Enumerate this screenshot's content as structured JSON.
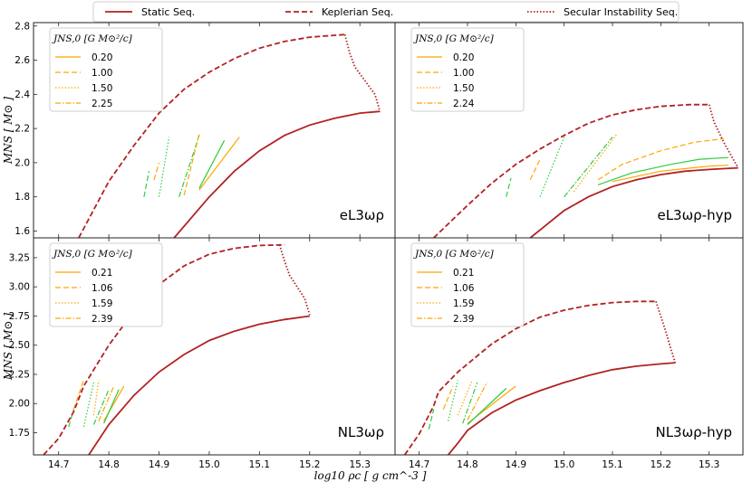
{
  "chart_data": {
    "type": "line",
    "legend_top": [
      {
        "label": "Static Seq.",
        "style": "solid",
        "color": "#b22222"
      },
      {
        "label": "Keplerian Seq.",
        "style": "dashed",
        "color": "#b22222"
      },
      {
        "label": "Secular Instability Seq.",
        "style": "dotted",
        "color": "#b22222"
      }
    ],
    "xlabel": "log10 ρc [ g cm^-3 ]",
    "ylabel": "MNS [ M⊙ ]",
    "xlim": [
      14.65,
      15.37
    ],
    "xticks": [
      "14.7",
      "14.8",
      "14.9",
      "15.0",
      "15.1",
      "15.2",
      "15.3"
    ],
    "panels": [
      {
        "id": "tl",
        "label": "eL3ωρ",
        "ylim": [
          1.56,
          2.82
        ],
        "yticks": [
          "1.6",
          "1.8",
          "2.0",
          "2.2",
          "2.4",
          "2.6",
          "2.8"
        ],
        "legend_title": "JNS,0 [G M⊙²/c]",
        "legend_values": [
          "0.20",
          "1.00",
          "1.50",
          "2.25"
        ],
        "static": [
          [
            14.93,
            1.56
          ],
          [
            15.0,
            1.8
          ],
          [
            15.05,
            1.95
          ],
          [
            15.1,
            2.07
          ],
          [
            15.15,
            2.16
          ],
          [
            15.2,
            2.22
          ],
          [
            15.25,
            2.26
          ],
          [
            15.3,
            2.29
          ],
          [
            15.34,
            2.3
          ]
        ],
        "kepler": [
          [
            14.74,
            1.56
          ],
          [
            14.8,
            1.89
          ],
          [
            14.85,
            2.1
          ],
          [
            14.9,
            2.29
          ],
          [
            14.95,
            2.43
          ],
          [
            15.0,
            2.53
          ],
          [
            15.05,
            2.61
          ],
          [
            15.1,
            2.67
          ],
          [
            15.15,
            2.71
          ],
          [
            15.2,
            2.735
          ],
          [
            15.27,
            2.75
          ]
        ],
        "secular": [
          [
            15.27,
            2.75
          ],
          [
            15.28,
            2.64
          ],
          [
            15.29,
            2.56
          ],
          [
            15.33,
            2.4
          ],
          [
            15.34,
            2.3
          ]
        ],
        "j_lines": [
          {
            "color": "#2ecc40",
            "style": "solid",
            "pts": [
              [
                14.98,
                1.85
              ],
              [
                15.03,
                2.13
              ]
            ]
          },
          {
            "color": "#ffa500",
            "style": "solid",
            "pts": [
              [
                14.98,
                1.84
              ],
              [
                15.06,
                2.15
              ]
            ]
          },
          {
            "color": "#2ecc40",
            "style": "dashdot",
            "pts": [
              [
                14.94,
                1.8
              ],
              [
                14.98,
                2.16
              ]
            ]
          },
          {
            "color": "#ffa500",
            "style": "dashed",
            "pts": [
              [
                14.95,
                1.81
              ],
              [
                14.98,
                2.17
              ]
            ]
          },
          {
            "color": "#2ecc40",
            "style": "dotted",
            "pts": [
              [
                14.9,
                1.8
              ],
              [
                14.92,
                2.15
              ]
            ]
          },
          {
            "color": "#2ecc40",
            "style": "dashed",
            "pts": [
              [
                14.87,
                1.8
              ],
              [
                14.88,
                1.95
              ]
            ]
          },
          {
            "color": "#ffa500",
            "style": "dashed",
            "pts": [
              [
                14.89,
                1.9
              ],
              [
                14.9,
                2.0
              ]
            ]
          }
        ]
      },
      {
        "id": "tr",
        "label": "eL3ωρ-hyp",
        "ylim": [
          1.56,
          2.82
        ],
        "yticks": [],
        "legend_title": "JNS,0 [G M⊙²/c]",
        "legend_values": [
          "0.20",
          "1.00",
          "1.50",
          "2.24"
        ],
        "static": [
          [
            14.93,
            1.56
          ],
          [
            15.0,
            1.72
          ],
          [
            15.05,
            1.8
          ],
          [
            15.1,
            1.86
          ],
          [
            15.15,
            1.9
          ],
          [
            15.2,
            1.93
          ],
          [
            15.25,
            1.95
          ],
          [
            15.3,
            1.96
          ],
          [
            15.36,
            1.97
          ]
        ],
        "kepler": [
          [
            14.73,
            1.56
          ],
          [
            14.8,
            1.75
          ],
          [
            14.85,
            1.88
          ],
          [
            14.9,
            1.99
          ],
          [
            14.95,
            2.08
          ],
          [
            15.0,
            2.16
          ],
          [
            15.05,
            2.23
          ],
          [
            15.1,
            2.28
          ],
          [
            15.15,
            2.31
          ],
          [
            15.2,
            2.33
          ],
          [
            15.26,
            2.34
          ],
          [
            15.3,
            2.34
          ]
        ],
        "secular": [
          [
            15.3,
            2.34
          ],
          [
            15.31,
            2.24
          ],
          [
            15.33,
            2.12
          ],
          [
            15.35,
            2.02
          ],
          [
            15.36,
            1.97
          ]
        ],
        "j_lines": [
          {
            "color": "#ffa500",
            "style": "dashed",
            "pts": [
              [
                15.07,
                1.9
              ],
              [
                15.12,
                1.99
              ],
              [
                15.2,
                2.07
              ],
              [
                15.27,
                2.12
              ],
              [
                15.33,
                2.14
              ]
            ]
          },
          {
            "color": "#2ecc40",
            "style": "solid",
            "pts": [
              [
                15.07,
                1.87
              ],
              [
                15.14,
                1.94
              ],
              [
                15.22,
                1.99
              ],
              [
                15.28,
                2.02
              ],
              [
                15.34,
                2.03
              ]
            ]
          },
          {
            "color": "#ffa500",
            "style": "solid",
            "pts": [
              [
                15.1,
                1.89
              ],
              [
                15.2,
                1.95
              ],
              [
                15.3,
                1.98
              ],
              [
                15.34,
                1.985
              ]
            ]
          },
          {
            "color": "#2ecc40",
            "style": "dashdot",
            "pts": [
              [
                15.0,
                1.8
              ],
              [
                15.1,
                2.15
              ]
            ]
          },
          {
            "color": "#ffa500",
            "style": "dotted",
            "pts": [
              [
                15.02,
                1.83
              ],
              [
                15.11,
                2.17
              ]
            ]
          },
          {
            "color": "#2ecc40",
            "style": "dotted",
            "pts": [
              [
                14.95,
                1.8
              ],
              [
                15.0,
                2.15
              ]
            ]
          },
          {
            "color": "#ffa500",
            "style": "dashed",
            "pts": [
              [
                14.93,
                1.9
              ],
              [
                14.95,
                2.02
              ]
            ]
          },
          {
            "color": "#2ecc40",
            "style": "dashed",
            "pts": [
              [
                14.88,
                1.8
              ],
              [
                14.89,
                1.91
              ]
            ]
          }
        ]
      },
      {
        "id": "bl",
        "label": "NL3ωρ",
        "ylim": [
          1.56,
          3.42
        ],
        "yticks": [
          "1.75",
          "2.00",
          "2.25",
          "2.50",
          "2.75",
          "3.00",
          "3.25"
        ],
        "legend_title": "JNS,0 [G M⊙²/c]",
        "legend_values": [
          "0.21",
          "1.06",
          "1.59",
          "2.39"
        ],
        "static": [
          [
            14.76,
            1.56
          ],
          [
            14.8,
            1.82
          ],
          [
            14.85,
            2.07
          ],
          [
            14.9,
            2.27
          ],
          [
            14.95,
            2.42
          ],
          [
            15.0,
            2.54
          ],
          [
            15.05,
            2.62
          ],
          [
            15.1,
            2.68
          ],
          [
            15.15,
            2.72
          ],
          [
            15.2,
            2.75
          ]
        ],
        "kepler": [
          [
            14.67,
            1.56
          ],
          [
            14.7,
            1.7
          ],
          [
            14.73,
            1.93
          ],
          [
            14.75,
            2.15
          ],
          [
            14.8,
            2.5
          ],
          [
            14.85,
            2.79
          ],
          [
            14.9,
            3.02
          ],
          [
            14.95,
            3.18
          ],
          [
            15.0,
            3.28
          ],
          [
            15.05,
            3.33
          ],
          [
            15.1,
            3.355
          ],
          [
            15.15,
            3.36
          ]
        ],
        "secular": [
          [
            15.14,
            3.36
          ],
          [
            15.15,
            3.22
          ],
          [
            15.16,
            3.1
          ],
          [
            15.19,
            2.9
          ],
          [
            15.2,
            2.76
          ]
        ],
        "j_lines": [
          {
            "color": "#ffa500",
            "style": "solid",
            "pts": [
              [
                14.79,
                1.85
              ],
              [
                14.83,
                2.15
              ]
            ]
          },
          {
            "color": "#2ecc40",
            "style": "solid",
            "pts": [
              [
                14.79,
                1.83
              ],
              [
                14.82,
                2.12
              ]
            ]
          },
          {
            "color": "#ffa500",
            "style": "dashdot",
            "pts": [
              [
                14.78,
                1.85
              ],
              [
                14.81,
                2.15
              ]
            ]
          },
          {
            "color": "#2ecc40",
            "style": "dashdot",
            "pts": [
              [
                14.77,
                1.82
              ],
              [
                14.8,
                2.12
              ]
            ]
          },
          {
            "color": "#ffa500",
            "style": "dotted",
            "pts": [
              [
                14.77,
                1.9
              ],
              [
                14.78,
                2.2
              ]
            ]
          },
          {
            "color": "#2ecc40",
            "style": "dotted",
            "pts": [
              [
                14.75,
                1.8
              ],
              [
                14.77,
                2.18
              ]
            ]
          },
          {
            "color": "#ffa500",
            "style": "dashed",
            "pts": [
              [
                14.73,
                1.95
              ],
              [
                14.75,
                2.2
              ]
            ]
          },
          {
            "color": "#2ecc40",
            "style": "dashed",
            "pts": [
              [
                14.72,
                1.8
              ],
              [
                14.73,
                1.95
              ]
            ]
          }
        ]
      },
      {
        "id": "br",
        "label": "NL3ωρ-hyp",
        "ylim": [
          1.56,
          3.42
        ],
        "yticks": [],
        "legend_title": "JNS,0 [G M⊙²/c]",
        "legend_values": [
          "0.21",
          "1.06",
          "1.59",
          "2.39"
        ],
        "static": [
          [
            14.76,
            1.56
          ],
          [
            14.78,
            1.66
          ],
          [
            14.8,
            1.77
          ],
          [
            14.85,
            1.92
          ],
          [
            14.9,
            2.03
          ],
          [
            14.95,
            2.11
          ],
          [
            15.0,
            2.18
          ],
          [
            15.05,
            2.24
          ],
          [
            15.1,
            2.29
          ],
          [
            15.15,
            2.32
          ],
          [
            15.2,
            2.34
          ],
          [
            15.23,
            2.35
          ]
        ],
        "kepler": [
          [
            14.67,
            1.56
          ],
          [
            14.7,
            1.74
          ],
          [
            14.73,
            1.98
          ],
          [
            14.74,
            2.1
          ],
          [
            14.78,
            2.27
          ],
          [
            14.85,
            2.51
          ],
          [
            14.9,
            2.64
          ],
          [
            14.95,
            2.74
          ],
          [
            15.0,
            2.8
          ],
          [
            15.05,
            2.84
          ],
          [
            15.1,
            2.865
          ],
          [
            15.15,
            2.875
          ],
          [
            15.19,
            2.875
          ]
        ],
        "secular": [
          [
            15.19,
            2.875
          ],
          [
            15.2,
            2.75
          ],
          [
            15.21,
            2.62
          ],
          [
            15.22,
            2.48
          ],
          [
            15.23,
            2.35
          ]
        ],
        "j_lines": [
          {
            "color": "#ffa500",
            "style": "solid",
            "pts": [
              [
                14.8,
                1.83
              ],
              [
                14.9,
                2.15
              ]
            ]
          },
          {
            "color": "#2ecc40",
            "style": "solid",
            "pts": [
              [
                14.8,
                1.82
              ],
              [
                14.88,
                2.13
              ]
            ]
          },
          {
            "color": "#ffa500",
            "style": "dashdot",
            "pts": [
              [
                14.8,
                1.86
              ],
              [
                14.84,
                2.18
              ]
            ]
          },
          {
            "color": "#2ecc40",
            "style": "dashdot",
            "pts": [
              [
                14.79,
                1.83
              ],
              [
                14.82,
                2.18
              ]
            ]
          },
          {
            "color": "#ffa500",
            "style": "dotted",
            "pts": [
              [
                14.78,
                1.9
              ],
              [
                14.81,
                2.2
              ]
            ]
          },
          {
            "color": "#2ecc40",
            "style": "dotted",
            "pts": [
              [
                14.76,
                1.85
              ],
              [
                14.78,
                2.2
              ]
            ]
          },
          {
            "color": "#ffa500",
            "style": "dashed",
            "pts": [
              [
                14.75,
                1.95
              ],
              [
                14.77,
                2.15
              ]
            ]
          },
          {
            "color": "#2ecc40",
            "style": "dashed",
            "pts": [
              [
                14.72,
                1.78
              ],
              [
                14.73,
                1.95
              ]
            ]
          }
        ]
      }
    ]
  }
}
